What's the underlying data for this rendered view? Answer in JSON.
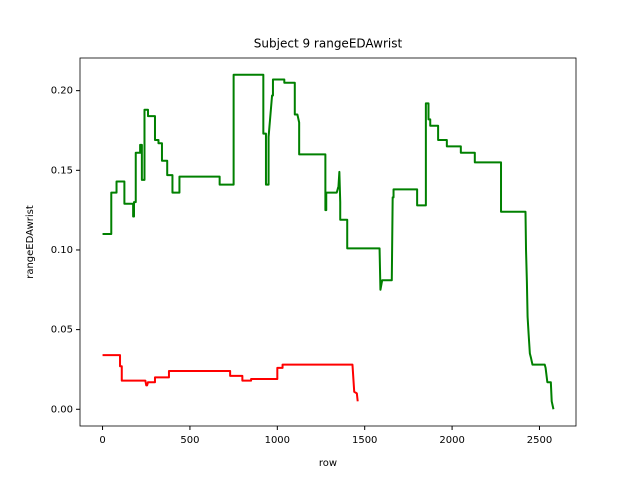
{
  "chart_data": {
    "type": "line",
    "title": "Subject 9 rangeEDAwrist",
    "x_label": "row",
    "y_label": "rangeEDAwrist",
    "xlim": [
      -129,
      2709
    ],
    "ylim": [
      -0.0105,
      0.2205
    ],
    "xticks": [
      0,
      500,
      1000,
      1500,
      2000,
      2500
    ],
    "yticks": [
      {
        "value": 0,
        "label": "0.00"
      },
      {
        "value": 0.05,
        "label": "0.05"
      },
      {
        "value": 0.1,
        "label": "0.10"
      },
      {
        "value": 0.15,
        "label": "0.15"
      },
      {
        "value": 0.2,
        "label": "0.20"
      }
    ],
    "series": [
      {
        "color": "#008000",
        "x": [
          0,
          50,
          50,
          80,
          80,
          125,
          125,
          175,
          175,
          180,
          180,
          190,
          190,
          215,
          215,
          225,
          225,
          240,
          240,
          260,
          260,
          300,
          300,
          320,
          320,
          340,
          340,
          370,
          370,
          400,
          400,
          440,
          440,
          670,
          670,
          750,
          750,
          920,
          920,
          935,
          935,
          950,
          950,
          970,
          975,
          975,
          1040,
          1040,
          1100,
          1100,
          1115,
          1125,
          1125,
          1265,
          1275,
          1275,
          1280,
          1280,
          1340,
          1350,
          1355,
          1360,
          1360,
          1400,
          1400,
          1585,
          1590,
          1600,
          1655,
          1660,
          1665,
          1665,
          1800,
          1800,
          1850,
          1850,
          1865,
          1865,
          1875,
          1875,
          1920,
          1920,
          1970,
          1970,
          2050,
          2050,
          2130,
          2130,
          2280,
          2280,
          2420,
          2423,
          2428,
          2432,
          2438,
          2445,
          2452,
          2460,
          2470,
          2530,
          2535,
          2545,
          2565,
          2570,
          2580
        ],
        "values": [
          0.11,
          0.11,
          0.136,
          0.136,
          0.143,
          0.143,
          0.129,
          0.129,
          0.121,
          0.121,
          0.13,
          0.13,
          0.161,
          0.161,
          0.166,
          0.166,
          0.144,
          0.144,
          0.188,
          0.188,
          0.184,
          0.184,
          0.169,
          0.169,
          0.167,
          0.167,
          0.156,
          0.156,
          0.147,
          0.147,
          0.136,
          0.136,
          0.146,
          0.146,
          0.141,
          0.141,
          0.21,
          0.21,
          0.173,
          0.173,
          0.141,
          0.141,
          0.171,
          0.197,
          0.197,
          0.207,
          0.207,
          0.205,
          0.205,
          0.185,
          0.185,
          0.18,
          0.16,
          0.16,
          0.16,
          0.125,
          0.125,
          0.136,
          0.136,
          0.14,
          0.149,
          0.13,
          0.119,
          0.119,
          0.101,
          0.101,
          0.075,
          0.081,
          0.081,
          0.133,
          0.133,
          0.138,
          0.138,
          0.128,
          0.128,
          0.192,
          0.192,
          0.182,
          0.182,
          0.178,
          0.178,
          0.169,
          0.169,
          0.165,
          0.165,
          0.161,
          0.161,
          0.155,
          0.155,
          0.124,
          0.124,
          0.1,
          0.08,
          0.058,
          0.047,
          0.035,
          0.032,
          0.028,
          0.028,
          0.028,
          0.026,
          0.017,
          0.017,
          0.005,
          0
        ]
      },
      {
        "color": "#ff0000",
        "x": [
          0,
          100,
          100,
          105,
          110,
          110,
          245,
          250,
          255,
          260,
          265,
          290,
          300,
          300,
          380,
          380,
          730,
          730,
          800,
          800,
          850,
          850,
          1000,
          1000,
          1030,
          1030,
          1430,
          1440,
          1440,
          1455,
          1460
        ],
        "values": [
          0.034,
          0.034,
          0.027,
          0.027,
          0.027,
          0.018,
          0.018,
          0.015,
          0.015,
          0.017,
          0.017,
          0.017,
          0.017,
          0.02,
          0.02,
          0.024,
          0.024,
          0.021,
          0.021,
          0.018,
          0.018,
          0.019,
          0.019,
          0.026,
          0.026,
          0.028,
          0.028,
          0.011,
          0.011,
          0.01,
          0.005
        ]
      }
    ]
  }
}
